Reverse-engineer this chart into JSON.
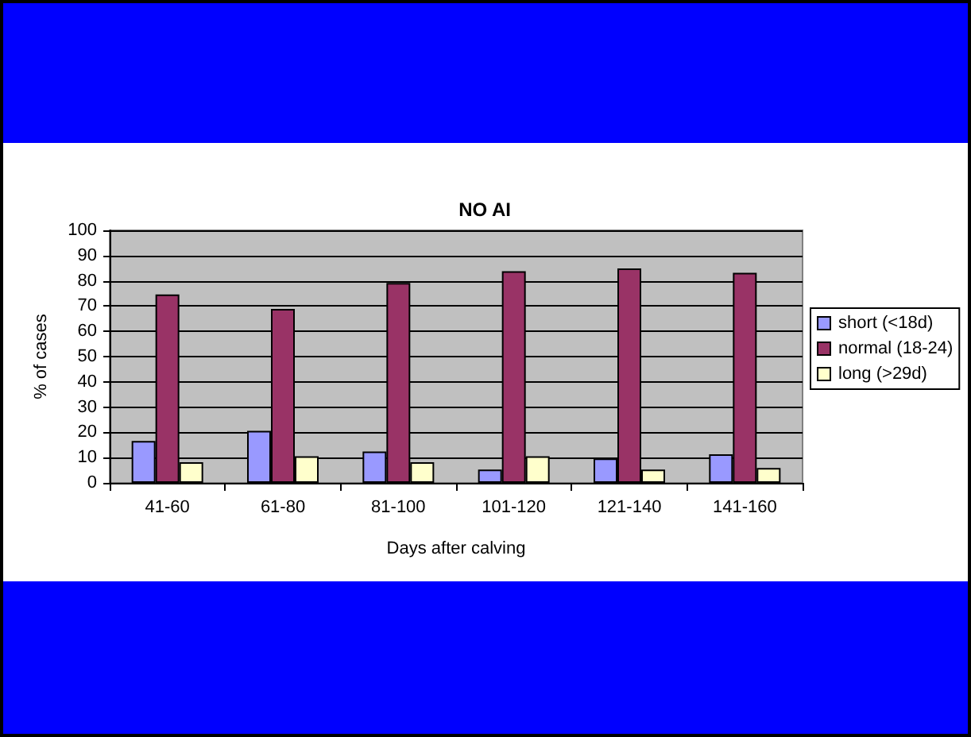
{
  "chart_data": {
    "type": "bar",
    "title": "NO AI",
    "xlabel": "Days after calving",
    "ylabel": "% of cases",
    "categories": [
      "41-60",
      "61-80",
      "81-100",
      "101-120",
      "121-140",
      "141-160"
    ],
    "series": [
      {
        "name": "short (<18d)",
        "color": "#9999ff",
        "values": [
          16.6,
          20.6,
          12.4,
          5.3,
          9.7,
          11.3
        ]
      },
      {
        "name": "normal (18-24)",
        "color": "#993366",
        "values": [
          74.6,
          68.9,
          79.2,
          83.8,
          84.9,
          83.2
        ]
      },
      {
        "name": "long (>29d)",
        "color": "#ffffcc",
        "values": [
          8.2,
          10.5,
          8.2,
          10.5,
          5.3,
          5.9
        ]
      }
    ],
    "ylim": [
      0,
      100
    ],
    "yticks": [
      0,
      10,
      20,
      30,
      40,
      50,
      60,
      70,
      80,
      90,
      100
    ],
    "grid": "y",
    "legend": "right"
  }
}
